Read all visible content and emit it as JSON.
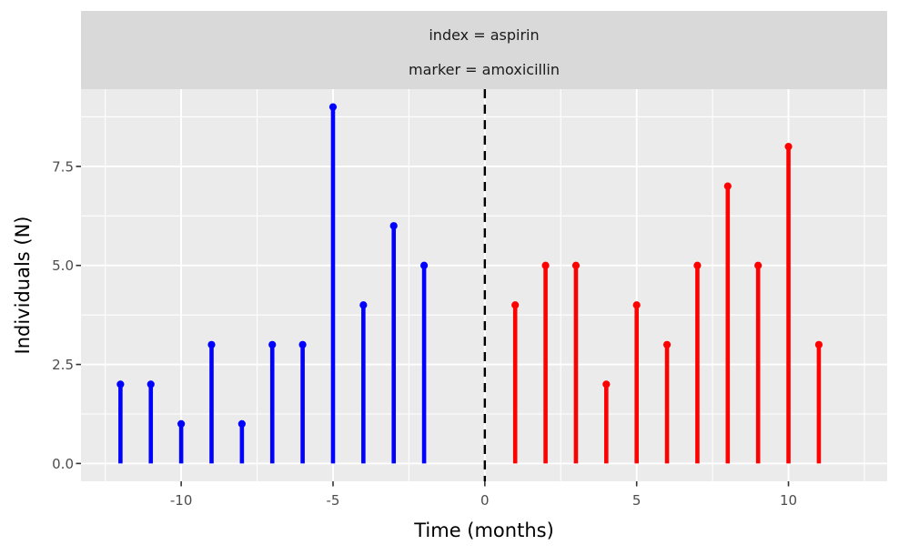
{
  "chart_data": {
    "type": "lollipop",
    "facet_strip": {
      "line1": "index = aspirin",
      "line2": "marker = amoxicillin"
    },
    "xlabel": "Time (months)",
    "ylabel": "Individuals (N)",
    "x_axis": {
      "ticks": [
        -10,
        -5,
        0,
        5,
        10
      ],
      "tick_labels": [
        "-10",
        "-5",
        "0",
        "5",
        "10"
      ],
      "range": [
        -13.3,
        13.25
      ],
      "minor_gridlines": [
        -12.5,
        -7.5,
        -2.5,
        2.5,
        7.5,
        12.5
      ]
    },
    "y_axis": {
      "ticks": [
        0,
        2.5,
        5,
        7.5
      ],
      "tick_labels": [
        "0.0",
        "2.5",
        "5.0",
        "7.5"
      ],
      "range": [
        -0.45,
        9.45
      ],
      "minor_gridlines": [
        1.25,
        3.75,
        6.25,
        8.75
      ]
    },
    "reference_line": {
      "x": 0,
      "style": "dashed",
      "color": "#000000"
    },
    "series": [
      {
        "id": "blue",
        "name": "blue stems (t < 0)",
        "color": "#0000FF",
        "x": [
          -12,
          -11,
          -10,
          -9,
          -8,
          -7,
          -6,
          -5,
          -4,
          -3,
          -2
        ],
        "values": [
          2,
          2,
          1,
          3,
          1,
          3,
          3,
          9,
          4,
          6,
          5
        ]
      },
      {
        "id": "red",
        "name": "red stems (t > 0)",
        "color": "#FF0000",
        "x": [
          1,
          2,
          3,
          4,
          5,
          6,
          7,
          8,
          9,
          10,
          11
        ],
        "values": [
          4,
          5,
          5,
          2,
          4,
          3,
          5,
          7,
          5,
          8,
          3
        ]
      }
    ],
    "grid": true,
    "legend": "none",
    "colors": {
      "panel_bg": "#EBEBEB",
      "strip_bg": "#D9D9D9",
      "gridline": "#FFFFFF",
      "tick_label": "#4D4D4D",
      "tick_mark": "#333333",
      "axis_title": "#000000",
      "strip_text": "#1A1A1A",
      "background": "#FFFFFF"
    }
  }
}
